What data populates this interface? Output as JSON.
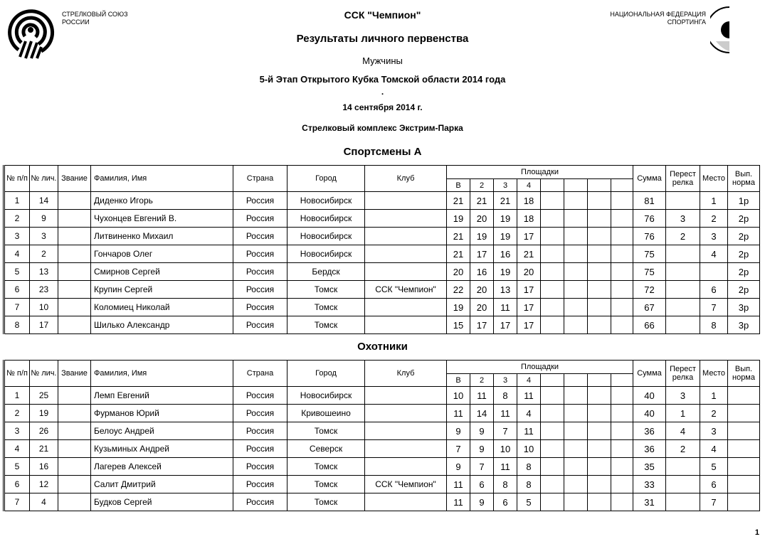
{
  "header": {
    "org_left": [
      "СТРЕЛКОВЫЙ СОЮЗ",
      "РОССИИ"
    ],
    "org_right": [
      "НАЦИОНАЛЬНАЯ ФЕДЕРАЦИЯ",
      "СПОРТИНГА"
    ],
    "club": "ССК \"Чемпион\"",
    "title": "Результаты личного первенства",
    "category": "Мужчины",
    "event": "5-й Этап Открытого Кубка Томской области 2014 года",
    "dot": ".",
    "date": "14 сентября 2014 г.",
    "venue": "Стрелковый комплекс Экстрим-Парка"
  },
  "columns": {
    "np": "№ п/п",
    "lic": "№ лич.",
    "rank": "Звание",
    "name": "Фамилия, Имя",
    "country": "Страна",
    "city": "Город",
    "club": "Клуб",
    "stands": "Площадки",
    "stand_labels": [
      "В",
      "2",
      "3",
      "4",
      "",
      "",
      "",
      ""
    ],
    "total": "Сумма",
    "shootoff": "Перест релка",
    "place": "Место",
    "norm": "Вып. норма"
  },
  "sections": [
    {
      "title": "Спортсмены А",
      "rows": [
        [
          "1",
          "14",
          "",
          "Диденко Игорь",
          "Россия",
          "Новосибирск",
          "",
          "21",
          "21",
          "21",
          "18",
          "81",
          "",
          "1",
          "1р"
        ],
        [
          "2",
          "9",
          "",
          "Чухонцев Евгений В.",
          "Россия",
          "Новосибирск",
          "",
          "19",
          "20",
          "19",
          "18",
          "76",
          "3",
          "2",
          "2р"
        ],
        [
          "3",
          "3",
          "",
          "Литвиненко Михаил",
          "Россия",
          "Новосибирск",
          "",
          "21",
          "19",
          "19",
          "17",
          "76",
          "2",
          "3",
          "2р"
        ],
        [
          "4",
          "2",
          "",
          "Гончаров Олег",
          "Россия",
          "Новосибирск",
          "",
          "21",
          "17",
          "16",
          "21",
          "75",
          "",
          "4",
          "2р"
        ],
        [
          "5",
          "13",
          "",
          "Смирнов Сергей",
          "Россия",
          "Бердск",
          "",
          "20",
          "16",
          "19",
          "20",
          "75",
          "",
          "",
          "2р"
        ],
        [
          "6",
          "23",
          "",
          "Крупин Сергей",
          "Россия",
          "Томск",
          "ССК \"Чемпион\"",
          "22",
          "20",
          "13",
          "17",
          "72",
          "",
          "6",
          "2р"
        ],
        [
          "7",
          "10",
          "",
          "Коломиец Николай",
          "Россия",
          "Томск",
          "",
          "19",
          "20",
          "11",
          "17",
          "67",
          "",
          "7",
          "3р"
        ],
        [
          "8",
          "17",
          "",
          "Шилько Александр",
          "Россия",
          "Томск",
          "",
          "15",
          "17",
          "17",
          "17",
          "66",
          "",
          "8",
          "3р"
        ]
      ]
    },
    {
      "title": "Охотники",
      "rows": [
        [
          "1",
          "25",
          "",
          "Лемп Евгений",
          "Россия",
          "Новосибирск",
          "",
          "10",
          "11",
          "8",
          "11",
          "40",
          "3",
          "1",
          ""
        ],
        [
          "2",
          "19",
          "",
          "Фурманов Юрий",
          "Россия",
          "Кривошеино",
          "",
          "11",
          "14",
          "11",
          "4",
          "40",
          "1",
          "2",
          ""
        ],
        [
          "3",
          "26",
          "",
          "Белоус Андрей",
          "Россия",
          "Томск",
          "",
          "9",
          "9",
          "7",
          "11",
          "36",
          "4",
          "3",
          ""
        ],
        [
          "4",
          "21",
          "",
          "Кузьминых Андрей",
          "Россия",
          "Северск",
          "",
          "7",
          "9",
          "10",
          "10",
          "36",
          "2",
          "4",
          ""
        ],
        [
          "5",
          "16",
          "",
          "Лагерев Алексей",
          "Россия",
          "Томск",
          "",
          "9",
          "7",
          "11",
          "8",
          "35",
          "",
          "5",
          ""
        ],
        [
          "6",
          "12",
          "",
          "Салит Дмитрий",
          "Россия",
          "Томск",
          "ССК \"Чемпион\"",
          "11",
          "6",
          "8",
          "8",
          "33",
          "",
          "6",
          ""
        ],
        [
          "7",
          "4",
          "",
          "Будков Сергей",
          "Россия",
          "Томск",
          "",
          "11",
          "9",
          "6",
          "5",
          "31",
          "",
          "7",
          ""
        ]
      ]
    }
  ],
  "page_number": "1"
}
